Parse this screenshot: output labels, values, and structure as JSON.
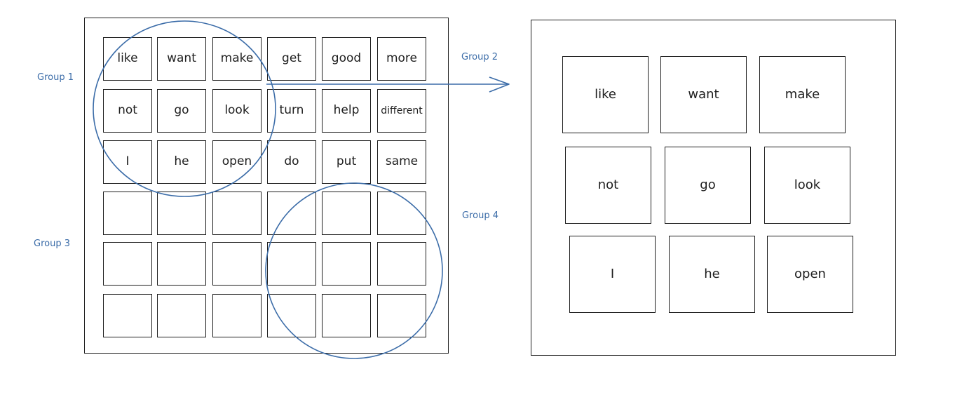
{
  "groups": {
    "group1": "Group 1",
    "group2": "Group 2",
    "group3": "Group 3",
    "group4": "Group 4"
  },
  "left_grid": {
    "rows": [
      [
        "like",
        "want",
        "make",
        "get",
        "good",
        "more"
      ],
      [
        "not",
        "go",
        "look",
        "turn",
        "help",
        "different"
      ],
      [
        "I",
        "he",
        "open",
        "do",
        "put",
        "same"
      ],
      [
        "",
        "",
        "",
        "",
        "",
        ""
      ],
      [
        "",
        "",
        "",
        "",
        "",
        ""
      ],
      [
        "",
        "",
        "",
        "",
        "",
        ""
      ]
    ]
  },
  "right_grid": {
    "rows": [
      [
        "like",
        "want",
        "make"
      ],
      [
        "not",
        "go",
        "look"
      ],
      [
        "I",
        "he",
        "open"
      ]
    ]
  },
  "colors": {
    "ink": "#1e1e1e",
    "accent": "#3b6ca8"
  }
}
